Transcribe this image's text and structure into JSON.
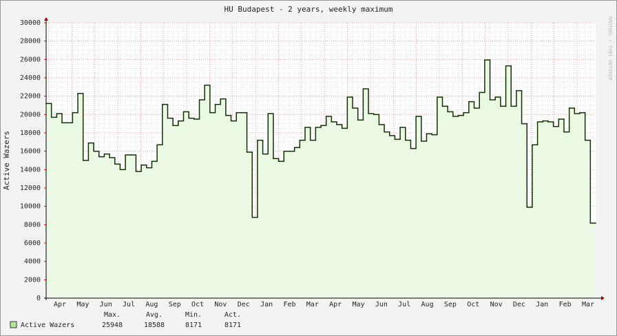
{
  "chart_data": {
    "type": "step",
    "title": "HU Budapest - 2 years, weekly maximum",
    "y_label": "Active Wazers",
    "side_note": "RRDTOOL / TOBI OETIKER",
    "x_labels": [
      "Apr",
      "May",
      "Jun",
      "Jul",
      "Aug",
      "Sep",
      "Oct",
      "Nov",
      "Dec",
      "Jan",
      "Feb",
      "Mar",
      "Apr",
      "May",
      "Jun",
      "Jul",
      "Aug",
      "Sep",
      "Oct",
      "Nov",
      "Dec",
      "Jan",
      "Feb",
      "Mar"
    ],
    "ylim": [
      0,
      30000
    ],
    "yticks": [
      0,
      2000,
      4000,
      6000,
      8000,
      10000,
      12000,
      14000,
      16000,
      18000,
      20000,
      22000,
      24000,
      26000,
      28000,
      30000
    ],
    "grid": true,
    "series": [
      {
        "name": "Active Wazers",
        "color": "#103000",
        "fill": "#eaf8e4",
        "legend_color": "#b4e69a",
        "values": [
          21200,
          19700,
          20100,
          19100,
          19100,
          20200,
          22300,
          15000,
          16900,
          16000,
          15400,
          15700,
          15300,
          14600,
          14000,
          15600,
          15600,
          13800,
          14500,
          14200,
          14900,
          16700,
          21100,
          19600,
          18800,
          19300,
          20300,
          19600,
          19500,
          21600,
          23200,
          20200,
          21100,
          21700,
          19900,
          19300,
          20200,
          20200,
          15900,
          8800,
          17200,
          15700,
          20100,
          15200,
          14900,
          16000,
          16000,
          16400,
          17200,
          18600,
          17200,
          18600,
          18800,
          19800,
          19200,
          18900,
          18500,
          21900,
          20700,
          19400,
          22800,
          20100,
          20000,
          18900,
          18100,
          17700,
          17300,
          18600,
          17200,
          16300,
          19800,
          17100,
          17900,
          17800,
          21900,
          20900,
          20300,
          19800,
          19900,
          20200,
          21400,
          20700,
          22400,
          25948,
          21600,
          21900,
          20900,
          25300,
          20900,
          22600,
          19000,
          9900,
          16700,
          19200,
          19300,
          19200,
          18700,
          19500,
          18100,
          20700,
          20100,
          20200,
          17200,
          8171
        ]
      }
    ],
    "stats": {
      "headers": [
        "Max.",
        "Avg.",
        "Min.",
        "Act."
      ],
      "values": [
        25948,
        18588,
        8171,
        8171
      ]
    }
  }
}
